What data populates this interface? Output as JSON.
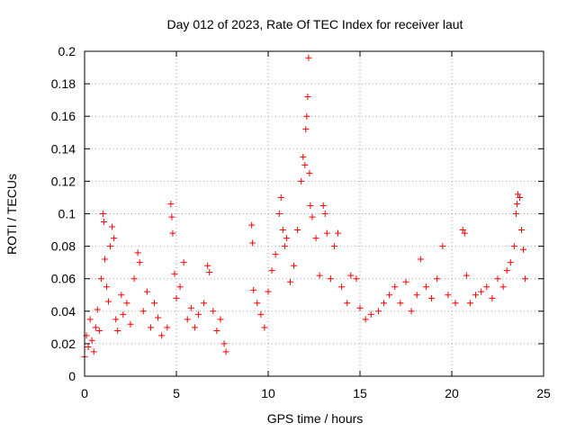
{
  "chart_data": {
    "type": "scatter",
    "title": "Day 012 of 2023, Rate Of TEC Index for receiver laut",
    "xlabel": "GPS time / hours",
    "ylabel": "ROTI / TECUs",
    "xlim": [
      0,
      25
    ],
    "ylim": [
      0,
      0.2
    ],
    "x_ticks": [
      0,
      5,
      10,
      15,
      20,
      25
    ],
    "x_tick_labels": [
      "0",
      "5",
      "10",
      "15",
      "20",
      "25"
    ],
    "y_ticks": [
      0,
      0.02,
      0.04,
      0.06,
      0.08,
      0.1,
      0.12,
      0.14,
      0.16,
      0.18,
      0.2
    ],
    "y_tick_labels": [
      "0",
      "0.02",
      "0.04",
      "0.06",
      "0.08",
      "0.1",
      "0.12",
      "0.14",
      "0.16",
      "0.18",
      "0.2"
    ],
    "grid": true,
    "marker": "+",
    "color": "#ff0000",
    "series": [
      {
        "points": [
          [
            0.0,
            0.012
          ],
          [
            0.1,
            0.025
          ],
          [
            0.2,
            0.018
          ],
          [
            0.3,
            0.035
          ],
          [
            0.4,
            0.022
          ],
          [
            0.5,
            0.015
          ],
          [
            0.6,
            0.03
          ],
          [
            0.7,
            0.041
          ],
          [
            0.8,
            0.028
          ],
          [
            0.9,
            0.06
          ],
          [
            1.0,
            0.1
          ],
          [
            1.05,
            0.095
          ],
          [
            1.1,
            0.072
          ],
          [
            1.2,
            0.055
          ],
          [
            1.3,
            0.046
          ],
          [
            1.4,
            0.08
          ],
          [
            1.5,
            0.092
          ],
          [
            1.6,
            0.085
          ],
          [
            1.7,
            0.035
          ],
          [
            1.8,
            0.028
          ],
          [
            2.0,
            0.05
          ],
          [
            2.1,
            0.038
          ],
          [
            2.3,
            0.045
          ],
          [
            2.5,
            0.032
          ],
          [
            2.7,
            0.06
          ],
          [
            2.9,
            0.076
          ],
          [
            3.0,
            0.07
          ],
          [
            3.2,
            0.04
          ],
          [
            3.4,
            0.052
          ],
          [
            3.6,
            0.03
          ],
          [
            3.8,
            0.045
          ],
          [
            4.0,
            0.036
          ],
          [
            4.2,
            0.025
          ],
          [
            4.5,
            0.03
          ],
          [
            4.7,
            0.106
          ],
          [
            4.75,
            0.098
          ],
          [
            4.8,
            0.088
          ],
          [
            4.9,
            0.063
          ],
          [
            5.0,
            0.048
          ],
          [
            5.2,
            0.055
          ],
          [
            5.4,
            0.07
          ],
          [
            5.6,
            0.035
          ],
          [
            5.8,
            0.042
          ],
          [
            6.0,
            0.03
          ],
          [
            6.2,
            0.038
          ],
          [
            6.5,
            0.045
          ],
          [
            6.7,
            0.068
          ],
          [
            6.8,
            0.064
          ],
          [
            7.0,
            0.04
          ],
          [
            7.2,
            0.028
          ],
          [
            7.4,
            0.035
          ],
          [
            7.6,
            0.02
          ],
          [
            7.7,
            0.015
          ],
          [
            9.1,
            0.093
          ],
          [
            9.15,
            0.082
          ],
          [
            9.2,
            0.053
          ],
          [
            9.4,
            0.045
          ],
          [
            9.6,
            0.038
          ],
          [
            9.8,
            0.03
          ],
          [
            10.0,
            0.052
          ],
          [
            10.2,
            0.065
          ],
          [
            10.4,
            0.075
          ],
          [
            10.6,
            0.1
          ],
          [
            10.7,
            0.11
          ],
          [
            10.8,
            0.09
          ],
          [
            10.9,
            0.08
          ],
          [
            11.0,
            0.085
          ],
          [
            11.2,
            0.058
          ],
          [
            11.4,
            0.068
          ],
          [
            11.6,
            0.09
          ],
          [
            11.8,
            0.12
          ],
          [
            11.9,
            0.135
          ],
          [
            12.0,
            0.13
          ],
          [
            12.05,
            0.152
          ],
          [
            12.1,
            0.16
          ],
          [
            12.15,
            0.172
          ],
          [
            12.2,
            0.196
          ],
          [
            12.25,
            0.125
          ],
          [
            12.3,
            0.105
          ],
          [
            12.4,
            0.098
          ],
          [
            12.6,
            0.085
          ],
          [
            12.8,
            0.062
          ],
          [
            13.0,
            0.105
          ],
          [
            13.1,
            0.1
          ],
          [
            13.2,
            0.088
          ],
          [
            13.4,
            0.06
          ],
          [
            13.6,
            0.08
          ],
          [
            13.8,
            0.088
          ],
          [
            14.0,
            0.055
          ],
          [
            14.3,
            0.045
          ],
          [
            14.5,
            0.062
          ],
          [
            14.8,
            0.06
          ],
          [
            15.0,
            0.042
          ],
          [
            15.3,
            0.035
          ],
          [
            15.6,
            0.038
          ],
          [
            16.0,
            0.04
          ],
          [
            16.3,
            0.045
          ],
          [
            16.6,
            0.05
          ],
          [
            16.9,
            0.055
          ],
          [
            17.2,
            0.045
          ],
          [
            17.5,
            0.058
          ],
          [
            17.8,
            0.04
          ],
          [
            18.1,
            0.05
          ],
          [
            18.3,
            0.072
          ],
          [
            18.6,
            0.055
          ],
          [
            18.9,
            0.048
          ],
          [
            19.2,
            0.06
          ],
          [
            19.5,
            0.08
          ],
          [
            19.8,
            0.05
          ],
          [
            20.2,
            0.045
          ],
          [
            20.6,
            0.09
          ],
          [
            20.7,
            0.088
          ],
          [
            20.8,
            0.062
          ],
          [
            21.0,
            0.045
          ],
          [
            21.3,
            0.05
          ],
          [
            21.6,
            0.052
          ],
          [
            21.9,
            0.055
          ],
          [
            22.2,
            0.048
          ],
          [
            22.5,
            0.06
          ],
          [
            22.8,
            0.055
          ],
          [
            23.0,
            0.065
          ],
          [
            23.2,
            0.07
          ],
          [
            23.4,
            0.08
          ],
          [
            23.5,
            0.1
          ],
          [
            23.55,
            0.106
          ],
          [
            23.6,
            0.112
          ],
          [
            23.7,
            0.11
          ],
          [
            23.8,
            0.09
          ],
          [
            23.9,
            0.078
          ],
          [
            24.0,
            0.06
          ]
        ]
      }
    ]
  }
}
